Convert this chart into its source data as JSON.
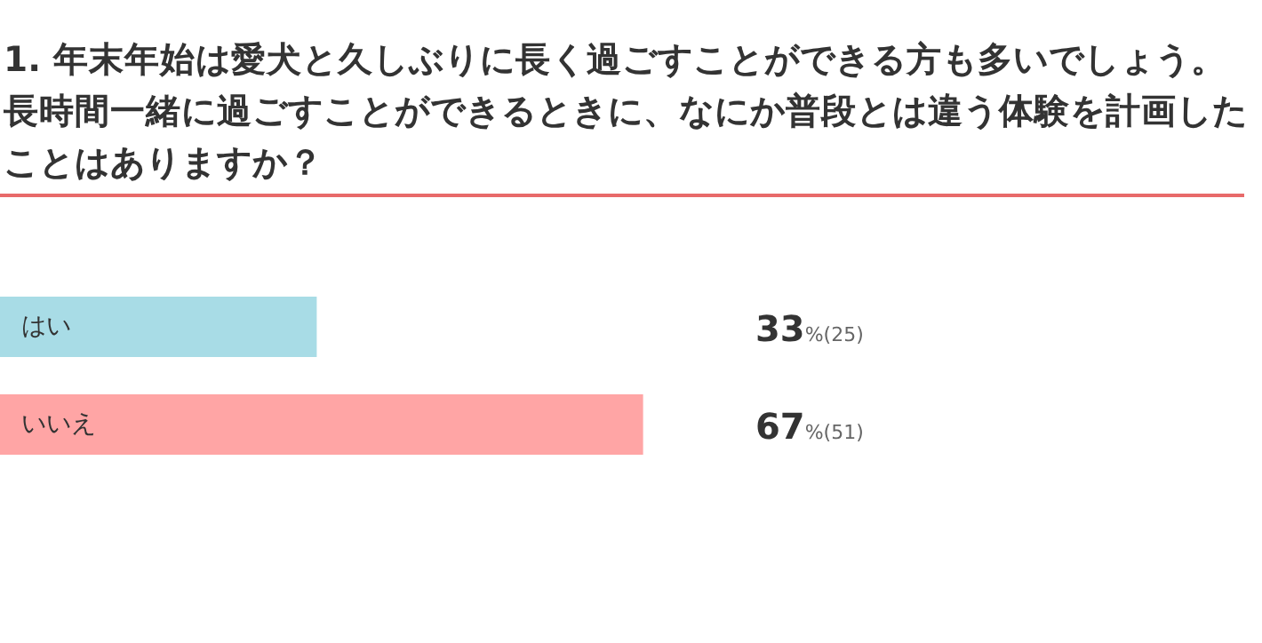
{
  "chart_data": {
    "type": "bar",
    "orientation": "horizontal",
    "title": "1. 年末年始は愛犬と久しぶりに長く過ごすことができる方も多いでしょう。長時間一緒に過ごすことができるときに、なにか普段とは違う体験を計画したことはありますか？",
    "categories": [
      "はい",
      "いいえ"
    ],
    "values": [
      33,
      67
    ],
    "colors": [
      "#a8dce6",
      "#ffa5a5"
    ],
    "value_labels": [
      "33%(25)",
      "67%(51)"
    ]
  }
}
